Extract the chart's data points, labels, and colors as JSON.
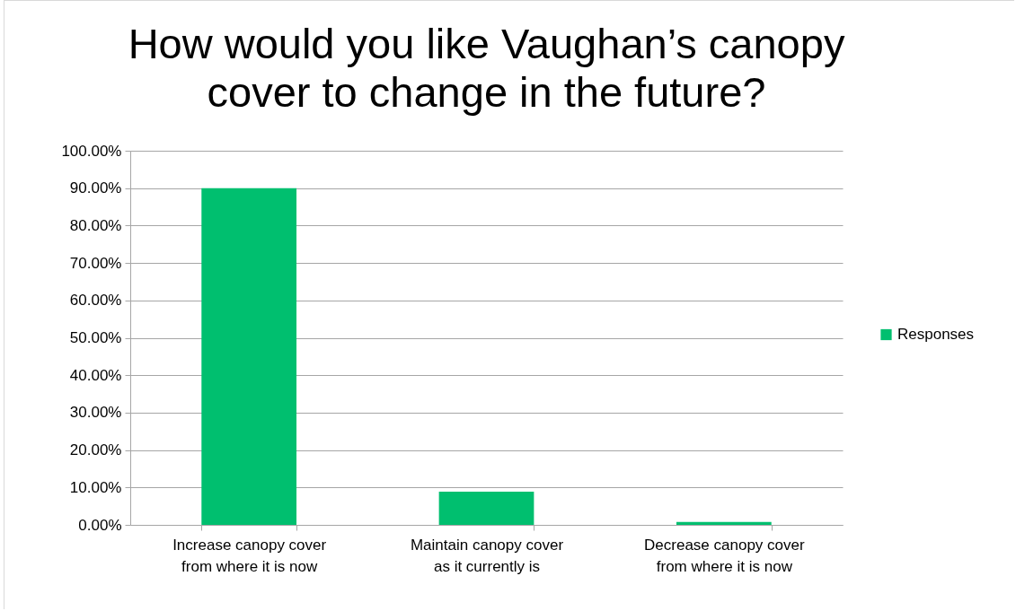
{
  "chart_data": {
    "type": "bar",
    "title": "How would you like Vaughan’s canopy cover to change in the future?",
    "categories": [
      "Increase canopy cover from where it is now",
      "Maintain canopy cover as it currently is",
      "Decrease canopy cover from where it is now"
    ],
    "series": [
      {
        "name": "Responses",
        "color": "#00bf6f",
        "values": [
          90,
          8.9,
          0.8
        ]
      }
    ],
    "ylim": [
      0,
      100
    ],
    "yticks": [
      {
        "value": 0,
        "label": "0.00%"
      },
      {
        "value": 10,
        "label": "10.00%"
      },
      {
        "value": 20,
        "label": "20.00%"
      },
      {
        "value": 30,
        "label": "30.00%"
      },
      {
        "value": 40,
        "label": "40.00%"
      },
      {
        "value": 50,
        "label": "50.00%"
      },
      {
        "value": 60,
        "label": "60.00%"
      },
      {
        "value": 70,
        "label": "70.00%"
      },
      {
        "value": 80,
        "label": "80.00%"
      },
      {
        "value": 90,
        "label": "90.00%"
      },
      {
        "value": 100,
        "label": "100.00%"
      }
    ],
    "grid": "y",
    "legend": "right"
  }
}
